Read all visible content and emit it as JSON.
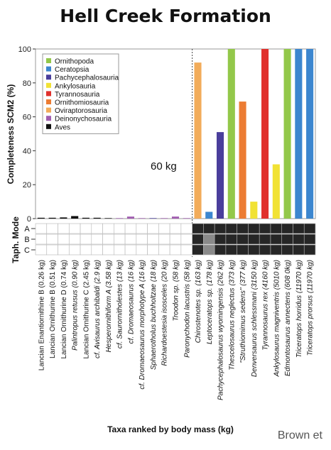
{
  "title": "Hell Creek Formation",
  "credit": "Brown et",
  "chart_data": {
    "type": "bar",
    "ylabel": "Completeness SCM2 (%)",
    "xlabel": "Taxa ranked by body mass (kg)",
    "ylim": [
      0,
      100
    ],
    "yticks": [
      0,
      20,
      40,
      60,
      80,
      100
    ],
    "annotation": "60 kg",
    "legend_position": "top-left",
    "groups": [
      {
        "name": "Ornithopoda",
        "color": "#93c84a"
      },
      {
        "name": "Ceratopsia",
        "color": "#3c86cf"
      },
      {
        "name": "Pachycephalosauria",
        "color": "#4a3e9c"
      },
      {
        "name": "Ankylosauria",
        "color": "#f1e234"
      },
      {
        "name": "Tyrannosauria",
        "color": "#e0302c"
      },
      {
        "name": "Ornithomiosauria",
        "color": "#ec7c33"
      },
      {
        "name": "Oviraptorosauria",
        "color": "#f2ac5a"
      },
      {
        "name": "Deinonychosauria",
        "color": "#a15eb0"
      },
      {
        "name": "Aves",
        "color": "#111111"
      }
    ],
    "categories": [
      "Lancian Enantiornithine B (0.26 kg)",
      "Lancian Ornithurine B (0.51 kg)",
      "Lancian Ornithurine D (0.74 kg)",
      "Palintropus retusus (0.90 kg)",
      "Lancian Ornithurine C (2.45 kg)",
      "cf. Avisaurus archibaldi (2.9 kg)",
      "Hesperornithiform A (3.58 kg)",
      "cf. Saurornitholestes (13 kg)",
      "cf. Dromaeosaurus (16 kg)",
      "cf. Dromaeosaurus morphotype A (16 kg)",
      "Sphaerotholus buchholtzae (18 kg)",
      "Richardoestesia isosceles (20 kg)",
      "Troodon sp. (58 kg)",
      "Paronychodon lacustris (58 kg)",
      "Chirostenotes sp. (163 kg)",
      "Leptoceratops sp. (178 kg)",
      "Pachycephalosaurus wyomingensis (262 kg)",
      "Thescelosaurus neglectus (373 kg)",
      "\"Struthiomimus sedens\" (377 kg)",
      "Denversaurus schlessmani (3150 kg)",
      "Tyrannosaurus rex (4160 kg)",
      "Ankylosaurus magniventris (5010 kg)",
      "Edmontosaurus annectens (608 0kg)",
      "Triceratops horridus (11970 kg)",
      "Triceratops prorsus (11970 kg)"
    ],
    "italic": [
      false,
      false,
      false,
      true,
      false,
      true,
      true,
      true,
      true,
      true,
      true,
      true,
      true,
      true,
      true,
      true,
      true,
      true,
      true,
      true,
      true,
      true,
      true,
      true,
      true
    ],
    "group_index": [
      8,
      8,
      8,
      8,
      8,
      8,
      8,
      7,
      7,
      7,
      2,
      7,
      7,
      7,
      6,
      1,
      2,
      0,
      5,
      3,
      4,
      3,
      0,
      1,
      1
    ],
    "values": [
      0.5,
      0.5,
      0.7,
      1.5,
      0.5,
      0.5,
      0.3,
      0.3,
      1.2,
      0.3,
      0.3,
      0.3,
      1.2,
      0.3,
      92,
      4,
      51,
      100,
      69,
      10,
      100,
      32,
      100,
      100,
      100
    ],
    "taphonomy": {
      "label": "Taph. Mode",
      "modes": [
        "A",
        "B",
        "C"
      ],
      "cells": [
        [
          "white",
          "white",
          "white"
        ],
        [
          "white",
          "white",
          "white"
        ],
        [
          "white",
          "white",
          "white"
        ],
        [
          "white",
          "white",
          "white"
        ],
        [
          "white",
          "white",
          "white"
        ],
        [
          "white",
          "white",
          "white"
        ],
        [
          "white",
          "white",
          "white"
        ],
        [
          "white",
          "white",
          "white"
        ],
        [
          "white",
          "white",
          "white"
        ],
        [
          "white",
          "white",
          "white"
        ],
        [
          "white",
          "white",
          "white"
        ],
        [
          "white",
          "white",
          "white"
        ],
        [
          "white",
          "white",
          "white"
        ],
        [
          "white",
          "white",
          "white"
        ],
        [
          "black",
          "black",
          "black"
        ],
        [
          "black",
          "gray",
          "gray"
        ],
        [
          "black",
          "black",
          "black"
        ],
        [
          "black",
          "black",
          "black"
        ],
        [
          "black",
          "black",
          "black"
        ],
        [
          "black",
          "black",
          "black"
        ],
        [
          "black",
          "black",
          "black"
        ],
        [
          "black",
          "black",
          "black"
        ],
        [
          "black",
          "black",
          "black"
        ],
        [
          "black",
          "black",
          "black"
        ],
        [
          "black",
          "black",
          "black"
        ]
      ]
    }
  }
}
